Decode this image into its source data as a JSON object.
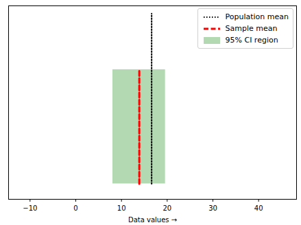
{
  "chart_data": {
    "type": "vlines",
    "xlabel": "Data values",
    "xlim": [
      -14.7,
      48.3
    ],
    "xticks": [
      -10,
      0,
      10,
      20,
      30,
      40
    ],
    "ylim": [
      0,
      1
    ],
    "tick_labels": "x",
    "legend": "upper right",
    "series": [
      {
        "name": "Population mean",
        "type": "line",
        "color": "black",
        "line_style": "dotted",
        "x": 16.6,
        "y": [
          0.08,
          0.96
        ]
      },
      {
        "name": "Sample mean",
        "type": "line",
        "color": "red",
        "line_style": "dashed",
        "x": 13.9,
        "y": [
          0.08,
          0.67
        ]
      },
      {
        "name": "95% CI region",
        "type": "area",
        "color": "green",
        "x": [
          8.1,
          19.6
        ],
        "y": [
          0.08,
          0.67
        ]
      }
    ]
  }
}
